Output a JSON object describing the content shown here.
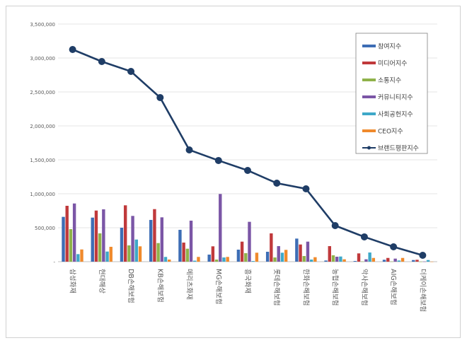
{
  "chart_data": {
    "type": "bar",
    "title": "",
    "xlabel": "",
    "ylabel": "",
    "ylim": [
      0,
      3500000
    ],
    "yticks": [
      "-",
      "500,000",
      "1,000,000",
      "1,500,000",
      "2,000,000",
      "2,500,000",
      "3,000,000",
      "3,500,000"
    ],
    "grid": true,
    "legend_position": "top-right",
    "categories": [
      "삼성화재",
      "현대해상",
      "DB손해보험",
      "KB손해보험",
      "메리츠화재",
      "MG손해보험",
      "흥국화재",
      "롯데손해보험",
      "한화손해보험",
      "농협손해보험",
      "악사손해보험",
      "AIG손해보험",
      "더케이손해보험"
    ],
    "series": [
      {
        "name": "참여지수",
        "type": "bar",
        "color": "#3d6db5",
        "values": [
          660000,
          649000,
          500000,
          615000,
          469000,
          104000,
          177000,
          146000,
          340000,
          17000,
          10000,
          28000,
          24000
        ]
      },
      {
        "name": "미디어지수",
        "type": "bar",
        "color": "#c0393b",
        "values": [
          823000,
          753000,
          830000,
          774000,
          281000,
          226000,
          295000,
          417000,
          253000,
          229000,
          122000,
          55000,
          28000
        ]
      },
      {
        "name": "소통지수",
        "type": "bar",
        "color": "#8fb24a",
        "values": [
          479000,
          417000,
          240000,
          274000,
          191000,
          31000,
          125000,
          62000,
          83000,
          94000,
          3000,
          3000,
          1000
        ]
      },
      {
        "name": "커뮤니티지수",
        "type": "bar",
        "color": "#7b56a6",
        "values": [
          857000,
          771000,
          674000,
          653000,
          604000,
          997000,
          587000,
          229000,
          295000,
          73000,
          35000,
          45000,
          2000
        ]
      },
      {
        "name": "사회공헌지수",
        "type": "bar",
        "color": "#3ea8c8",
        "values": [
          111000,
          149000,
          326000,
          70000,
          15000,
          62000,
          10000,
          132000,
          31000,
          76000,
          135000,
          17000,
          24000
        ]
      },
      {
        "name": "CEO지수",
        "type": "bar",
        "color": "#f08a2c",
        "values": [
          180000,
          219000,
          226000,
          31000,
          70000,
          70000,
          132000,
          174000,
          66000,
          35000,
          55000,
          55000,
          1000
        ]
      },
      {
        "name": "브랜드평판지수",
        "type": "line",
        "color": "#1f3d66",
        "values": [
          3125000,
          2948000,
          2802000,
          2417000,
          1646000,
          1490000,
          1344000,
          1156000,
          1073000,
          531000,
          365000,
          219000,
          94000
        ]
      }
    ]
  }
}
